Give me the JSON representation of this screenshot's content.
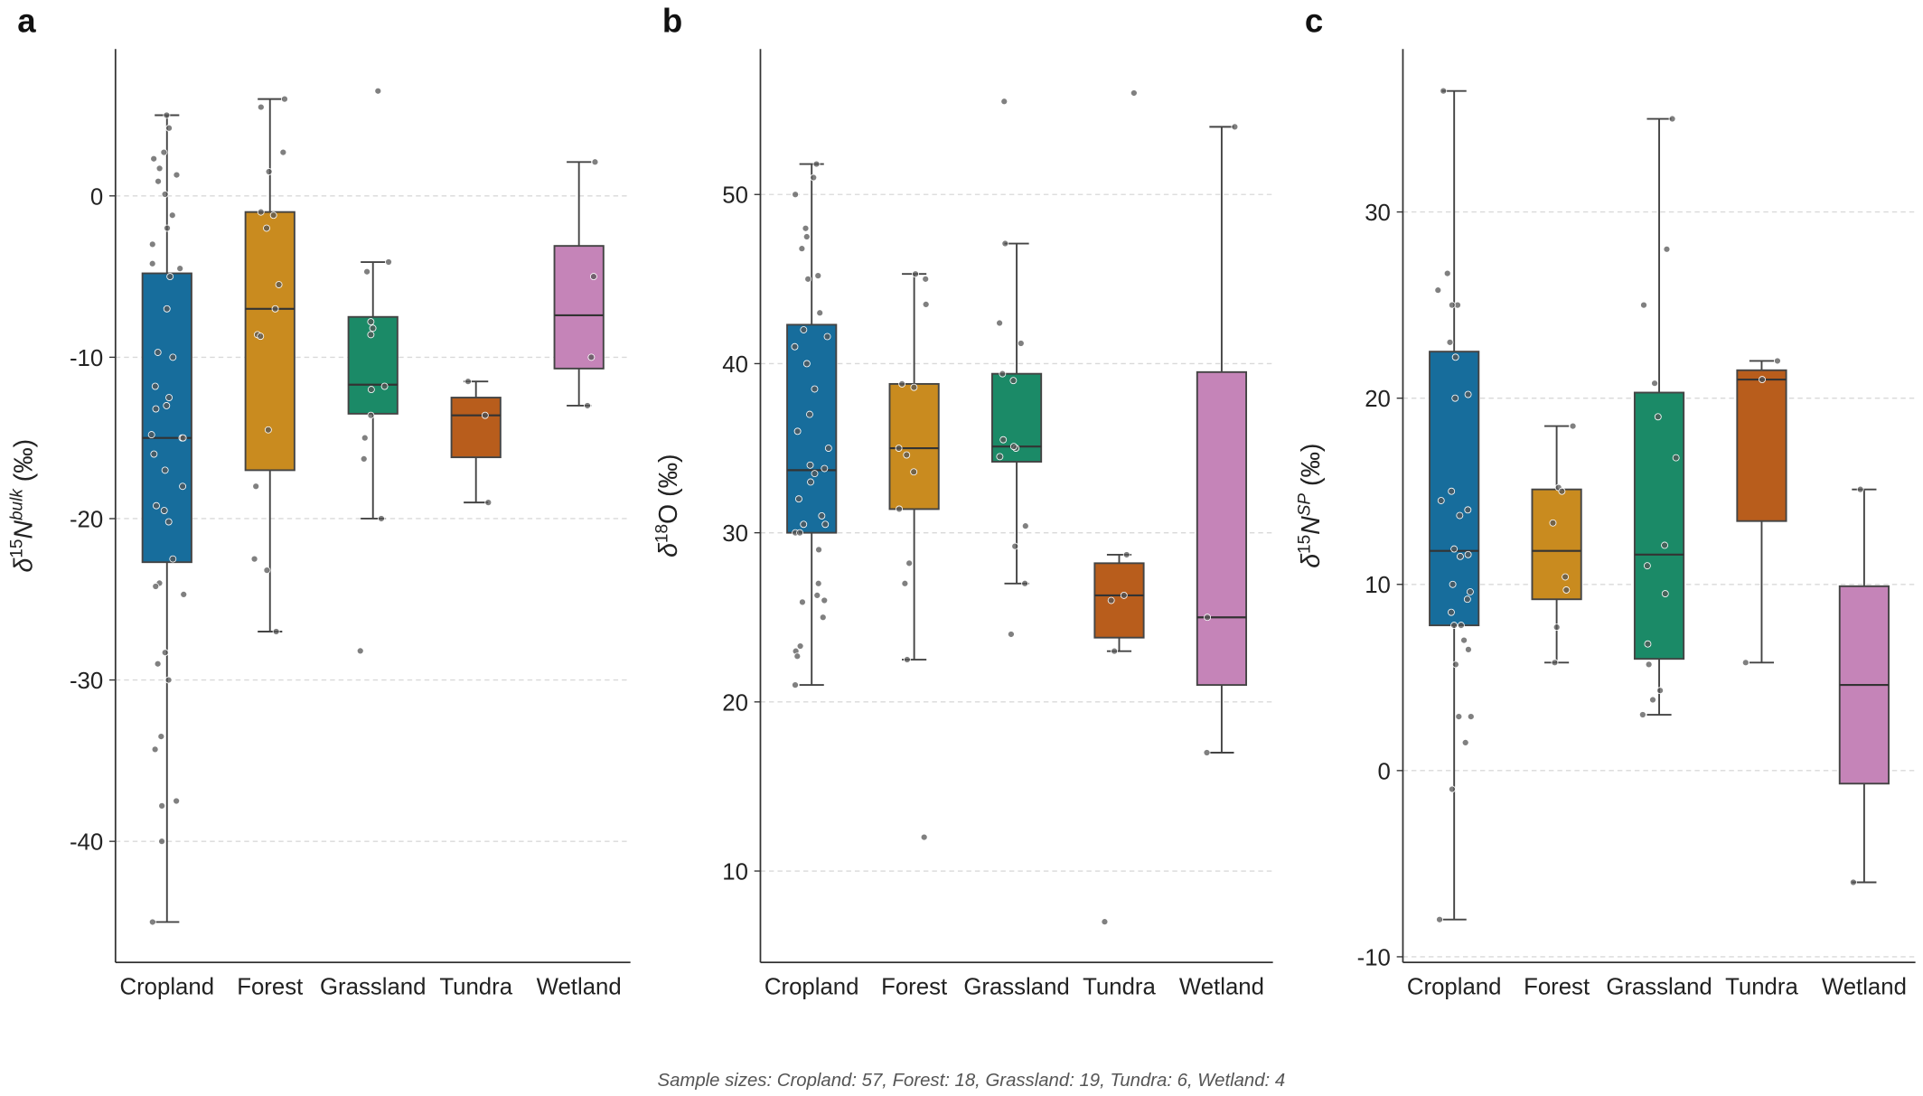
{
  "footer": "Sample sizes: Cropland: 57, Forest: 18, Grassland: 19, Tundra: 6, Wetland: 4",
  "colors": {
    "Cropland": "#176d9c",
    "Forest": "#c98b1f",
    "Grassland": "#1b8a67",
    "Tundra": "#b85d1c",
    "Wetland": "#c584b8",
    "points": "#555555",
    "grid": "#d9d9d9"
  },
  "chart_data": [
    {
      "type": "box",
      "panel_label": "a",
      "ylabel": {
        "base": "δ",
        "sup1": "15",
        "main": "N",
        "sup2": "bulk",
        "unit": " (‰)"
      },
      "categories": [
        "Cropland",
        "Forest",
        "Grassland",
        "Tundra",
        "Wetland"
      ],
      "ylim": [
        -47.5,
        9.1
      ],
      "yticks": [
        0,
        -10,
        -20,
        -30,
        -40
      ],
      "grid": "horizontal dashed",
      "boxes": [
        {
          "category": "Cropland",
          "whislo": -45,
          "q1": -22.7,
          "med": -15,
          "q3": -4.8,
          "whishi": 5,
          "points": [
            5,
            4.2,
            2.3,
            0.9,
            0.1,
            -2,
            -3,
            -4.5,
            -5,
            2.7,
            1.7,
            1.3,
            -1.2,
            -4.2,
            -7,
            -9.7,
            -10,
            -11.8,
            -12.5,
            -13,
            -13.2,
            -14.8,
            -15,
            -15,
            -16,
            -17,
            -18,
            -19.2,
            -19.5,
            -20.2,
            -22.5,
            -24,
            -24.2,
            -24.7,
            -28.3,
            -29,
            -30,
            -33.5,
            -34.3,
            -37.5,
            -37.8,
            -40,
            -45
          ]
        },
        {
          "category": "Forest",
          "whislo": -27,
          "q1": -17,
          "med": -7,
          "q3": -1,
          "whishi": 6,
          "points": [
            6,
            5.5,
            2.7,
            1.5,
            -1,
            -1.2,
            -2,
            -5.5,
            -7,
            -8.6,
            -8.7,
            -14.5,
            -18,
            -22.5,
            -23.2,
            -27
          ]
        },
        {
          "category": "Grassland",
          "whislo": -20,
          "q1": -13.5,
          "med": -11.7,
          "q3": -7.5,
          "whishi": -4.1,
          "points": [
            6.5,
            -4.1,
            -4.7,
            -7.8,
            -8.2,
            -8.6,
            -11.8,
            -12,
            -13.6,
            -15,
            -16.3,
            -20,
            -28.2
          ]
        },
        {
          "category": "Tundra",
          "whislo": -19,
          "q1": -16.2,
          "med": -13.6,
          "q3": -12.5,
          "whishi": -11.5,
          "points": [
            -11.5,
            -13.6,
            -19
          ]
        },
        {
          "category": "Wetland",
          "whislo": -13,
          "q1": -10.7,
          "med": -7.4,
          "q3": -3.1,
          "whishi": 2.1,
          "points": [
            2.1,
            -5,
            -10,
            -13
          ]
        }
      ]
    },
    {
      "type": "box",
      "panel_label": "b",
      "ylabel": {
        "base": "δ",
        "sup1": "18",
        "main": "O",
        "sup2": "",
        "unit": " (‰)"
      },
      "categories": [
        "Cropland",
        "Forest",
        "Grassland",
        "Tundra",
        "Wetland"
      ],
      "ylim": [
        4.6,
        58.6
      ],
      "yticks": [
        50,
        40,
        30,
        20,
        10
      ],
      "grid": "horizontal dashed",
      "boxes": [
        {
          "category": "Cropland",
          "whislo": 21,
          "q1": 30,
          "med": 33.7,
          "q3": 42.3,
          "whishi": 51.8,
          "points": [
            51.8,
            51,
            50,
            48,
            47.5,
            46.8,
            45,
            45.2,
            43,
            42,
            41.6,
            41,
            40,
            38.5,
            37,
            36,
            35,
            34,
            33.8,
            33.5,
            33,
            32,
            31,
            30.5,
            30.5,
            30,
            30,
            29,
            27,
            26.3,
            26,
            25.9,
            25,
            23.3,
            23,
            22.7,
            21
          ]
        },
        {
          "category": "Forest",
          "whislo": 22.5,
          "q1": 31.4,
          "med": 35,
          "q3": 38.8,
          "whishi": 45.3,
          "points": [
            45.3,
            45,
            43.5,
            38.8,
            38.6,
            35,
            34.6,
            33.6,
            31.4,
            28.2,
            27,
            22.5,
            12
          ]
        },
        {
          "category": "Grassland",
          "whislo": 27,
          "q1": 34.2,
          "med": 35.1,
          "q3": 39.4,
          "whishi": 47.1,
          "points": [
            55.5,
            47.1,
            42.4,
            41.2,
            39.4,
            39,
            35.5,
            35,
            35.1,
            34.5,
            30.4,
            29.2,
            27,
            24
          ]
        },
        {
          "category": "Tundra",
          "whislo": 23,
          "q1": 23.8,
          "med": 26.3,
          "q3": 28.2,
          "whishi": 28.7,
          "points": [
            56,
            28.7,
            26.3,
            26,
            23,
            7
          ]
        },
        {
          "category": "Wetland",
          "whislo": 17,
          "q1": 21,
          "med": 25,
          "q3": 39.5,
          "whishi": 54,
          "points": [
            54,
            25,
            17
          ]
        }
      ]
    },
    {
      "type": "box",
      "panel_label": "c",
      "ylabel": {
        "base": "δ",
        "sup1": "15",
        "main": "N",
        "sup2": "SP",
        "unit": " (‰)"
      },
      "categories": [
        "Cropland",
        "Forest",
        "Grassland",
        "Tundra",
        "Wetland"
      ],
      "ylim": [
        -10.3,
        38.75
      ],
      "yticks": [
        30,
        20,
        10,
        0,
        -10
      ],
      "grid": "horizontal dashed",
      "boxes": [
        {
          "category": "Cropland",
          "whislo": -8,
          "q1": 7.8,
          "med": 11.8,
          "q3": 22.5,
          "whishi": 36.5,
          "points": [
            36.5,
            26.7,
            25.8,
            25,
            25,
            23,
            22.2,
            20.2,
            20,
            15,
            14.5,
            14,
            13.7,
            11.9,
            11.6,
            11.5,
            10,
            9.6,
            9.2,
            8.5,
            7.8,
            7.8,
            7,
            6.5,
            5.7,
            2.9,
            2.9,
            1.5,
            -1,
            -8
          ]
        },
        {
          "category": "Forest",
          "whislo": 5.8,
          "q1": 9.2,
          "med": 11.8,
          "q3": 15.1,
          "whishi": 18.5,
          "points": [
            18.5,
            15.2,
            15,
            13.3,
            10.4,
            9.7,
            7.7,
            5.8
          ]
        },
        {
          "category": "Grassland",
          "whislo": 3,
          "q1": 6,
          "med": 11.6,
          "q3": 20.3,
          "whishi": 35,
          "points": [
            35,
            28,
            25,
            20.8,
            19,
            16.8,
            12.1,
            11,
            9.5,
            6.8,
            5.7,
            4.3,
            3.8,
            3
          ]
        },
        {
          "category": "Tundra",
          "whislo": 5.8,
          "q1": 13.4,
          "med": 21,
          "q3": 21.5,
          "whishi": 22,
          "points": [
            22,
            21,
            5.8
          ]
        },
        {
          "category": "Wetland",
          "whislo": -6,
          "q1": -0.7,
          "med": 4.6,
          "q3": 9.9,
          "whishi": 15.1,
          "points": [
            15.1,
            -6
          ]
        }
      ]
    }
  ]
}
